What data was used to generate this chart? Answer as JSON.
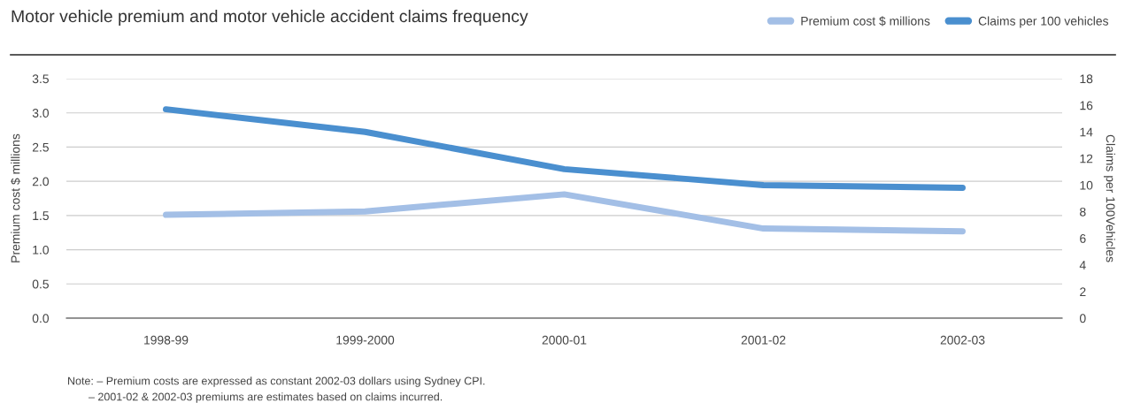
{
  "chart_data": {
    "type": "line",
    "title": "Motor vehicle premium and motor vehicle accident claims frequency",
    "categories": [
      "1998-99",
      "1999-2000",
      "2000-01",
      "2001-02",
      "2002-03"
    ],
    "series": [
      {
        "name": "Premium cost $ millions",
        "color": "#a3bfe6",
        "values": [
          1.51,
          1.56,
          1.81,
          1.31,
          1.27
        ]
      },
      {
        "name": "Claims per 100 vehicles",
        "color": "#4a8fcf",
        "axis": "y2",
        "values": [
          15.7,
          14.0,
          11.2,
          10.0,
          9.8
        ]
      }
    ],
    "ylabel": "Premium cost $ millions",
    "y2label": "Claims per 100Vehicles",
    "ylim": [
      0,
      3.5
    ],
    "yticks": [
      {
        "value": 0,
        "label": "0.0"
      },
      0.5,
      {
        "value": 1,
        "label": "1.0"
      },
      1.5,
      {
        "value": 2,
        "label": "2.0"
      },
      2.5,
      {
        "value": 3,
        "label": "3.0"
      },
      3.5
    ],
    "y2lim": [
      0,
      18
    ],
    "y2ticks": [
      0,
      2,
      4,
      6,
      8,
      10,
      12,
      14,
      16,
      18
    ],
    "grid": "y",
    "legend": "top right",
    "marker": "none",
    "line_style": "solid",
    "annotations": [
      "Note: – Premium costs are expressed as constant 2002-03 dollars using Sydney CPI.",
      "– 2001-02 & 2002-03 premiums are estimates based on claims incurred."
    ]
  }
}
